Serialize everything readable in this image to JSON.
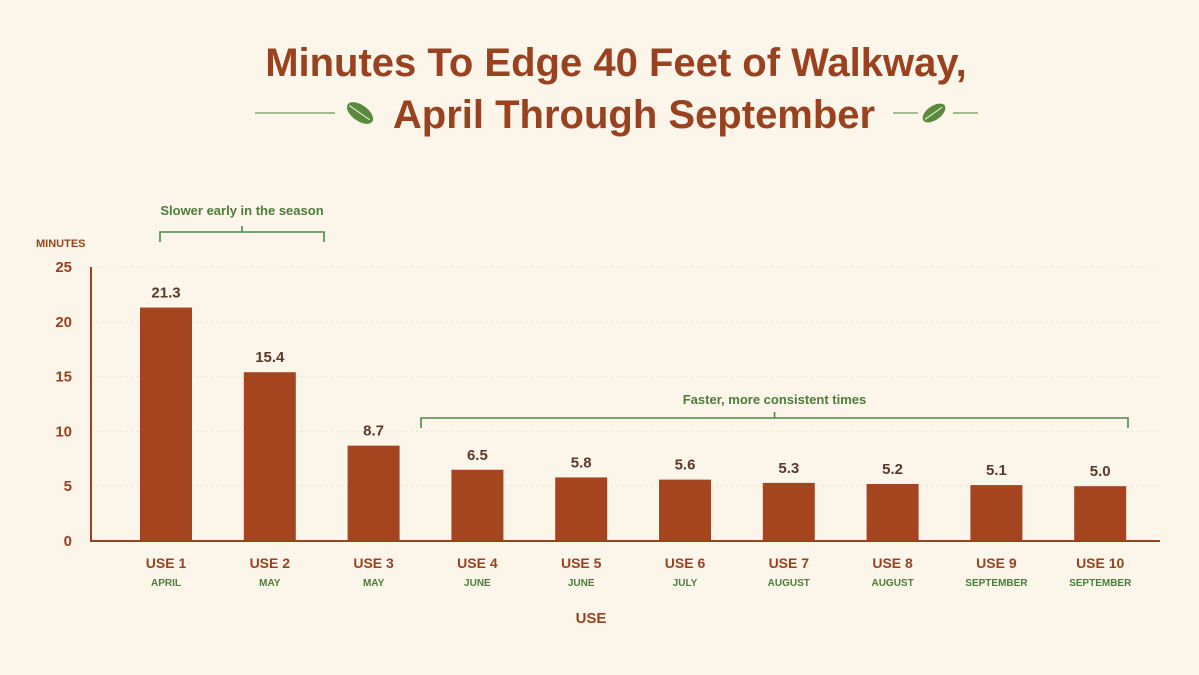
{
  "chart_data": {
    "type": "bar",
    "title_lines": [
      "Minutes To Edge 40 Feet of Walkway,",
      "April Through September"
    ],
    "ylabel": "MINUTES",
    "xlabel": "USE",
    "ylim": [
      0,
      25
    ],
    "yticks": [
      0,
      5,
      10,
      15,
      20,
      25
    ],
    "grid": true,
    "categories": [
      "USE 1",
      "USE 2",
      "USE 3",
      "USE 4",
      "USE 5",
      "USE 6",
      "USE 7",
      "USE 8",
      "USE 9",
      "USE 10"
    ],
    "months": [
      "APRIL",
      "MAY",
      "MAY",
      "JUNE",
      "JUNE",
      "JULY",
      "AUGUST",
      "AUGUST",
      "SEPTEMBER",
      "SEPTEMBER"
    ],
    "values": [
      21.3,
      15.4,
      8.7,
      6.5,
      5.8,
      5.6,
      5.3,
      5.2,
      5.1,
      5.0
    ],
    "value_labels": [
      "21.3",
      "15.4",
      "8.7",
      "6.5",
      "5.8",
      "5.6",
      "5.3",
      "5.2",
      "5.1",
      "5.0"
    ],
    "annotations": [
      {
        "text": "Slower early in the season",
        "from_index": 0,
        "to_index": 1
      },
      {
        "text": "Faster, more consistent times",
        "from_index": 3,
        "to_index": 9
      }
    ]
  },
  "colors": {
    "bar": "#a4451f",
    "title": "#9a4220",
    "accent_green": "#4e7a3a",
    "background": "#fbf5ea"
  },
  "icons": [
    "leaf-icon"
  ]
}
